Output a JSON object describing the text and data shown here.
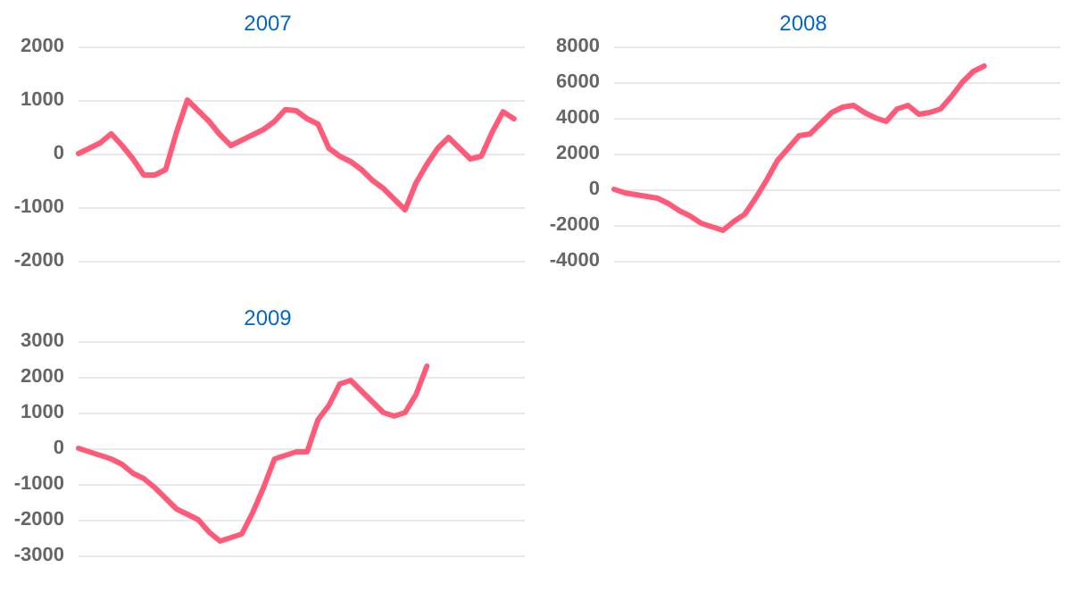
{
  "chart_data": [
    {
      "type": "line",
      "title": "2007",
      "categories": [
        null,
        null,
        null,
        null,
        null,
        null,
        null,
        null,
        null,
        null,
        null,
        null,
        null,
        null,
        null,
        null,
        null,
        null,
        null,
        null,
        null,
        null,
        null,
        null,
        null,
        null,
        null,
        null,
        null,
        null,
        null,
        null,
        null,
        null,
        null,
        null,
        null,
        null,
        null,
        null,
        null,
        null
      ],
      "series": [
        {
          "color": "#ff5a78",
          "values": [
            0,
            100,
            200,
            370,
            150,
            -100,
            -400,
            -400,
            -300,
            400,
            1000,
            800,
            600,
            350,
            150,
            250,
            350,
            450,
            600,
            820,
            800,
            650,
            550,
            100,
            -50,
            -150,
            -300,
            -500,
            -650,
            -850,
            -1050,
            -550,
            -200,
            100,
            300,
            100,
            -100,
            -50,
            400,
            780,
            650,
            null
          ]
        }
      ],
      "ylim": [
        -2000,
        2000
      ],
      "yticks": [
        -2000,
        -1000,
        0,
        1000,
        2000
      ],
      "grid": "y",
      "tick_labels": "y",
      "line_style": "solid"
    },
    {
      "type": "line",
      "title": "2008",
      "categories": [
        null,
        null,
        null,
        null,
        null,
        null,
        null,
        null,
        null,
        null,
        null,
        null,
        null,
        null,
        null,
        null,
        null,
        null,
        null,
        null,
        null,
        null,
        null,
        null,
        null,
        null,
        null,
        null,
        null,
        null,
        null,
        null,
        null,
        null,
        null,
        null,
        null,
        null,
        null,
        null,
        null,
        null
      ],
      "series": [
        {
          "color": "#ff5a78",
          "values": [
            0,
            -200,
            -300,
            -400,
            -500,
            -800,
            -1200,
            -1500,
            -1900,
            -2100,
            -2300,
            -1800,
            -1400,
            -500,
            500,
            1600,
            2300,
            3000,
            3100,
            3700,
            4300,
            4600,
            4700,
            4300,
            4000,
            3800,
            4500,
            4700,
            4200,
            4300,
            4500,
            5200,
            6000,
            6600,
            6900,
            null,
            null,
            null,
            null,
            null,
            null,
            null
          ]
        }
      ],
      "ylim": [
        -4000,
        8000
      ],
      "yticks": [
        -4000,
        -2000,
        0,
        2000,
        4000,
        6000,
        8000
      ],
      "grid": "y",
      "tick_labels": "y",
      "line_style": "solid"
    },
    {
      "type": "line",
      "title": "2009",
      "categories": [
        null,
        null,
        null,
        null,
        null,
        null,
        null,
        null,
        null,
        null,
        null,
        null,
        null,
        null,
        null,
        null,
        null,
        null,
        null,
        null,
        null,
        null,
        null,
        null,
        null,
        null,
        null,
        null,
        null,
        null,
        null,
        null,
        null,
        null,
        null,
        null,
        null,
        null,
        null,
        null,
        null,
        null
      ],
      "series": [
        {
          "color": "#ff5a78",
          "values": [
            0,
            -100,
            -200,
            -300,
            -450,
            -700,
            -850,
            -1100,
            -1400,
            -1700,
            -1850,
            -2000,
            -2350,
            -2600,
            -2500,
            -2400,
            -1800,
            -1100,
            -300,
            -200,
            -100,
            -100,
            800,
            1200,
            1800,
            1900,
            1600,
            1300,
            1000,
            900,
            1000,
            1500,
            2300,
            null,
            null,
            null,
            null,
            null,
            null,
            null,
            null,
            null
          ]
        }
      ],
      "ylim": [
        -3000,
        3000
      ],
      "yticks": [
        -3000,
        -2000,
        -1000,
        0,
        1000,
        2000,
        3000
      ],
      "grid": "y",
      "tick_labels": "y",
      "line_style": "solid"
    }
  ]
}
